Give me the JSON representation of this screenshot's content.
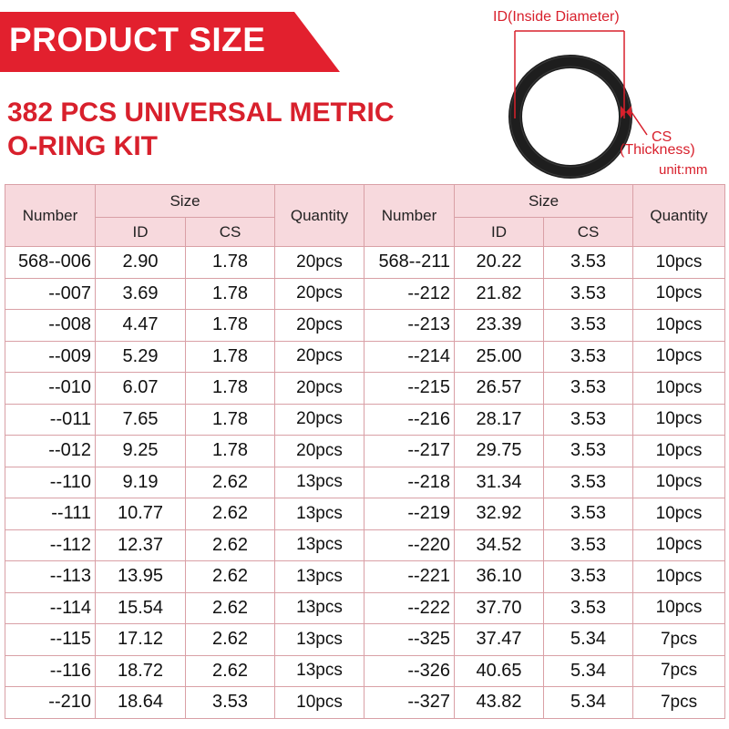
{
  "banner": {
    "title": "PRODUCT SIZE"
  },
  "headline": {
    "line1": "382 PCS UNIVERSAL METRIC",
    "line2": "O-RING KIT"
  },
  "diagram": {
    "id_label": "ID(Inside Diameter)",
    "cs_label": "CS",
    "cs_sublabel": "(Thickness)",
    "unit": "unit:mm"
  },
  "colors": {
    "accent": "#e2202e",
    "header_bg": "#f7d9dd",
    "border": "#d9a0a6"
  },
  "table": {
    "headers": {
      "number": "Number",
      "size": "Size",
      "id": "ID",
      "cs": "CS",
      "quantity": "Quantity"
    },
    "rows": [
      {
        "l": [
          "568--006",
          "2.90",
          "1.78",
          "20pcs"
        ],
        "r": [
          "568--211",
          "20.22",
          "3.53",
          "10pcs"
        ]
      },
      {
        "l": [
          "--007",
          "3.69",
          "1.78",
          "20pcs"
        ],
        "r": [
          "--212",
          "21.82",
          "3.53",
          "10pcs"
        ]
      },
      {
        "l": [
          "--008",
          "4.47",
          "1.78",
          "20pcs"
        ],
        "r": [
          "--213",
          "23.39",
          "3.53",
          "10pcs"
        ]
      },
      {
        "l": [
          "--009",
          "5.29",
          "1.78",
          "20pcs"
        ],
        "r": [
          "--214",
          "25.00",
          "3.53",
          "10pcs"
        ]
      },
      {
        "l": [
          "--010",
          "6.07",
          "1.78",
          "20pcs"
        ],
        "r": [
          "--215",
          "26.57",
          "3.53",
          "10pcs"
        ]
      },
      {
        "l": [
          "--011",
          "7.65",
          "1.78",
          "20pcs"
        ],
        "r": [
          "--216",
          "28.17",
          "3.53",
          "10pcs"
        ]
      },
      {
        "l": [
          "--012",
          "9.25",
          "1.78",
          "20pcs"
        ],
        "r": [
          "--217",
          "29.75",
          "3.53",
          "10pcs"
        ]
      },
      {
        "l": [
          "--110",
          "9.19",
          "2.62",
          "13pcs"
        ],
        "r": [
          "--218",
          "31.34",
          "3.53",
          "10pcs"
        ]
      },
      {
        "l": [
          "--111",
          "10.77",
          "2.62",
          "13pcs"
        ],
        "r": [
          "--219",
          "32.92",
          "3.53",
          "10pcs"
        ]
      },
      {
        "l": [
          "--112",
          "12.37",
          "2.62",
          "13pcs"
        ],
        "r": [
          "--220",
          "34.52",
          "3.53",
          "10pcs"
        ]
      },
      {
        "l": [
          "--113",
          "13.95",
          "2.62",
          "13pcs"
        ],
        "r": [
          "--221",
          "36.10",
          "3.53",
          "10pcs"
        ]
      },
      {
        "l": [
          "--114",
          "15.54",
          "2.62",
          "13pcs"
        ],
        "r": [
          "--222",
          "37.70",
          "3.53",
          "10pcs"
        ]
      },
      {
        "l": [
          "--115",
          "17.12",
          "2.62",
          "13pcs"
        ],
        "r": [
          "--325",
          "37.47",
          "5.34",
          "7pcs"
        ]
      },
      {
        "l": [
          "--116",
          "18.72",
          "2.62",
          "13pcs"
        ],
        "r": [
          "--326",
          "40.65",
          "5.34",
          "7pcs"
        ]
      },
      {
        "l": [
          "--210",
          "18.64",
          "3.53",
          "10pcs"
        ],
        "r": [
          "--327",
          "43.82",
          "5.34",
          "7pcs"
        ]
      }
    ]
  }
}
